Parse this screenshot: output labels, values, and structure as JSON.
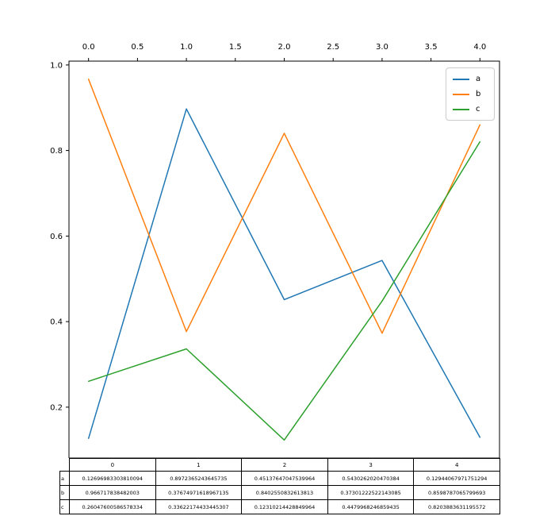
{
  "chart_data": {
    "type": "line",
    "title": "",
    "xlabel": "",
    "ylabel": "",
    "grid": false,
    "x": [
      0,
      1,
      2,
      3,
      4
    ],
    "series": [
      {
        "name": "a",
        "color": "#1f77b4",
        "values": [
          0.12696983303810094,
          0.8972365243645735,
          0.45137647047539964,
          0.5430262020470384,
          0.12944067971751294
        ]
      },
      {
        "name": "b",
        "color": "#ff7f0e",
        "values": [
          0.966717838482003,
          0.37674971618967135,
          0.8402550832613813,
          0.37301222522143085,
          0.8598787065799693
        ]
      },
      {
        "name": "c",
        "color": "#2ca02c",
        "values": [
          0.26047600586578334,
          0.33622174433445307,
          0.12310214428849964,
          0.4479968246859435,
          0.8203883631195572
        ]
      }
    ],
    "xlim": [
      -0.2,
      4.2
    ],
    "ylim": [
      0.081,
      1.009
    ],
    "x_ticks": {
      "position": "top",
      "values": [
        0,
        0.5,
        1,
        1.5,
        2,
        2.5,
        3,
        3.5,
        4
      ],
      "labels": [
        "0.0",
        "0.5",
        "1.0",
        "1.5",
        "2.0",
        "2.5",
        "3.0",
        "3.5",
        "4.0"
      ]
    },
    "y_ticks": {
      "position": "left",
      "values": [
        0.2,
        0.4,
        0.6,
        0.8,
        1.0
      ],
      "labels": [
        "0.2",
        "0.4",
        "0.6",
        "0.8",
        "1.0"
      ]
    },
    "legend": {
      "position": "upper right",
      "entries": [
        {
          "label": "a",
          "color": "#1f77b4"
        },
        {
          "label": "b",
          "color": "#ff7f0e"
        },
        {
          "label": "c",
          "color": "#2ca02c"
        }
      ]
    },
    "table": {
      "col_headers": [
        "0",
        "1",
        "2",
        "3",
        "4"
      ],
      "rows": [
        {
          "label": "a",
          "values": [
            "0.12696983303810094",
            "0.8972365243645735",
            "0.45137647047539964",
            "0.5430262020470384",
            "0.12944067971751294"
          ]
        },
        {
          "label": "b",
          "values": [
            "0.966717838482003",
            "0.37674971618967135",
            "0.8402550832613813",
            "0.37301222522143085",
            "0.8598787065799693"
          ]
        },
        {
          "label": "c",
          "values": [
            "0.26047600586578334",
            "0.33622174433445307",
            "0.12310214428849964",
            "0.4479968246859435",
            "0.8203883631195572"
          ]
        }
      ]
    }
  }
}
